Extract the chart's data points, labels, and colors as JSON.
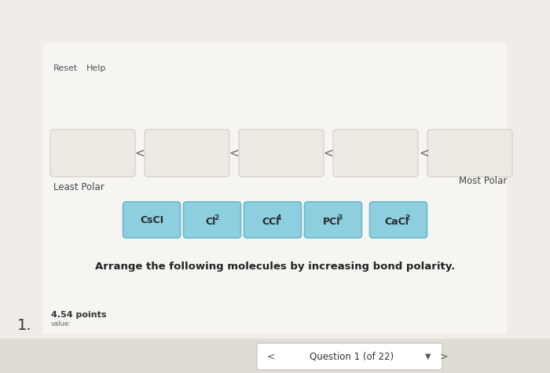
{
  "bg_top": "#e8e4de",
  "bg_main": "#f0ede8",
  "bg_white_panel": "#f7f5f2",
  "header_text": "Question 1 (of 22)",
  "header_box_color": "#ffffff",
  "header_box_edge": "#cccccc",
  "question_number": "1.",
  "value_label": "value:",
  "points_label": "4.54 points",
  "instruction": "Arrange the following molecules by increasing bond polarity.",
  "molecules": [
    {
      "main": "CsCI",
      "sub": ""
    },
    {
      "main": "Cl",
      "sub": "2"
    },
    {
      "main": "CCl",
      "sub": "4"
    },
    {
      "main": "PCl",
      "sub": "3"
    },
    {
      "main": "CaCl",
      "sub": "2"
    }
  ],
  "box_color": "#8dcfdf",
  "box_edge_color": "#6ab8cc",
  "least_polar_label": "Least Polar",
  "most_polar_label": "Most Polar",
  "reset_label": "Reset",
  "help_label": "Help",
  "answer_box_color": "#ede9e3",
  "answer_box_edge": "#d0ccc6",
  "lt_color": "#666666"
}
